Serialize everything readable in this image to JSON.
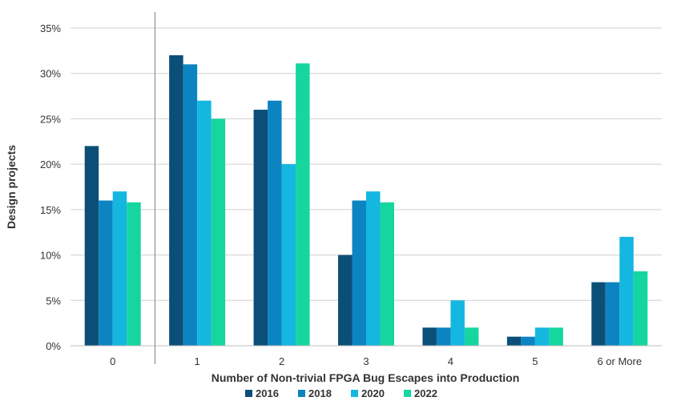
{
  "chart_data": {
    "type": "bar",
    "title": "",
    "xlabel": "Number of Non-trivial FPGA Bug Escapes into Production",
    "ylabel": "Design projects",
    "categories": [
      "0",
      "1",
      "2",
      "3",
      "4",
      "5",
      "6 or More"
    ],
    "ylim": [
      0,
      35
    ],
    "yticks": [
      0,
      5,
      10,
      15,
      20,
      25,
      30,
      35
    ],
    "ytick_labels": [
      "0%",
      "5%",
      "10%",
      "15%",
      "20%",
      "25%",
      "30%",
      "35%"
    ],
    "grid": true,
    "legend_position": "bottom",
    "series": [
      {
        "name": "2016",
        "color": "#0b4f78",
        "values": [
          22,
          32,
          26,
          10,
          2,
          1,
          7
        ]
      },
      {
        "name": "2018",
        "color": "#0c84c2",
        "values": [
          16,
          31,
          27,
          16,
          2,
          1,
          7
        ]
      },
      {
        "name": "2020",
        "color": "#14b7e0",
        "values": [
          17,
          27,
          20,
          17,
          5,
          2,
          12
        ]
      },
      {
        "name": "2022",
        "color": "#16d6a0",
        "values": [
          15.8,
          25,
          31.1,
          15.8,
          2,
          2,
          8.2
        ]
      }
    ]
  }
}
